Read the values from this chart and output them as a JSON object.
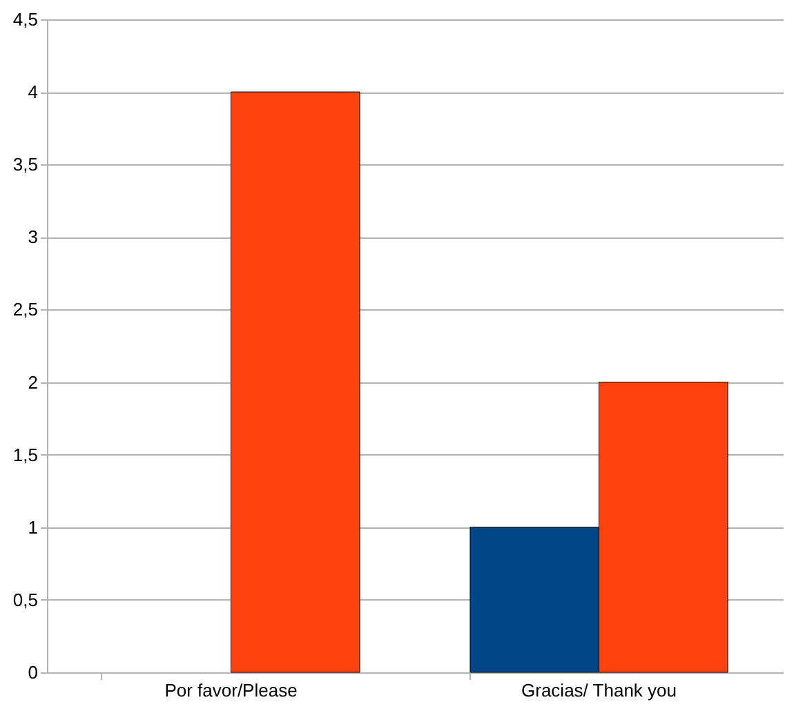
{
  "chart_data": {
    "type": "bar",
    "categories": [
      "Por favor/Please",
      "Gracias/ Thank you"
    ],
    "series": [
      {
        "color": "#004586",
        "values": [
          null,
          1
        ]
      },
      {
        "color": "#ff420e",
        "values": [
          4,
          2
        ]
      }
    ],
    "ylim": [
      0,
      4.5
    ],
    "yticks": [
      0,
      {
        "value": 0.5,
        "label": "0,5"
      },
      1,
      {
        "value": 1.5,
        "label": "1,5"
      },
      2,
      {
        "value": 2.5,
        "label": "2,5"
      },
      3,
      {
        "value": 3.5,
        "label": "3,5"
      },
      4,
      {
        "value": 4.5,
        "label": "4,5"
      }
    ],
    "grid": "y",
    "legend": false
  }
}
